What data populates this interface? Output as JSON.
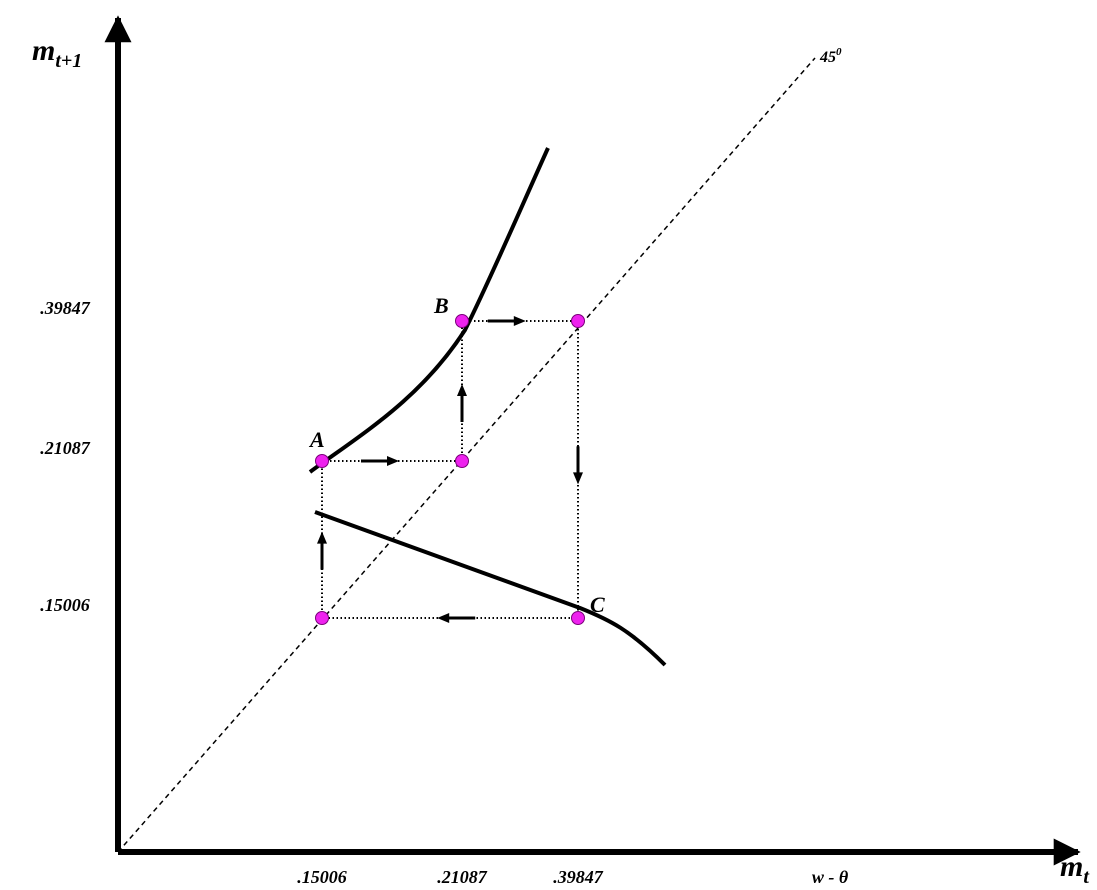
{
  "chart_data": {
    "type": "line",
    "title": "",
    "xlabel": {
      "main": "m",
      "sub": "t"
    },
    "ylabel": {
      "main": "m",
      "sub": "t+1"
    },
    "x_ticks": [
      {
        "value": 0.15006,
        "label": ".15006"
      },
      {
        "value": 0.21087,
        "label": ".21087"
      },
      {
        "value": 0.39847,
        "label": ".39847"
      }
    ],
    "x_extra_label": "w - θ",
    "y_ticks": [
      {
        "value": 0.15006,
        "label": ".15006"
      },
      {
        "value": 0.21087,
        "label": ".21087"
      },
      {
        "value": 0.39847,
        "label": ".39847"
      }
    ],
    "diagonal_label": {
      "main": "45",
      "sup": "0"
    },
    "points": [
      {
        "label": "A",
        "x": 0.15006,
        "y": 0.21087
      },
      {
        "label": "B",
        "x": 0.21087,
        "y": 0.39847
      },
      {
        "label": "C",
        "x": 0.39847,
        "y": 0.15006
      },
      {
        "label": "",
        "x": 0.21087,
        "y": 0.21087
      },
      {
        "label": "",
        "x": 0.39847,
        "y": 0.39847
      },
      {
        "label": "",
        "x": 0.15006,
        "y": 0.15006
      }
    ],
    "cycle_path": [
      [
        0.15006,
        0.21087
      ],
      [
        0.21087,
        0.21087
      ],
      [
        0.21087,
        0.39847
      ],
      [
        0.39847,
        0.39847
      ],
      [
        0.39847,
        0.15006
      ],
      [
        0.15006,
        0.15006
      ],
      [
        0.15006,
        0.21087
      ]
    ],
    "colors": {
      "point_fill": "#ee22ee",
      "point_stroke": "#7a007a",
      "line": "#000000"
    }
  }
}
